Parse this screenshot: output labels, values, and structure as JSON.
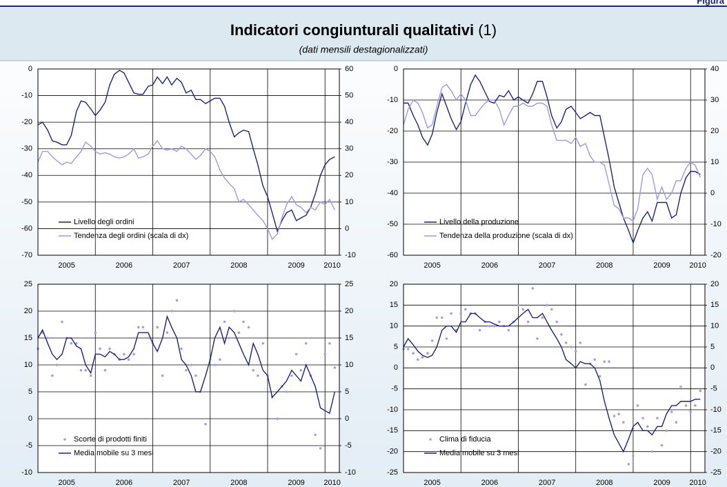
{
  "figure_label": "Figura",
  "title": "Indicatori congiunturali qualitativi",
  "title_note": "(1)",
  "subtitle": "(dati mensili destagionalizzati)",
  "chart_data": [
    {
      "type": "line",
      "x": [
        2005,
        2005.08,
        2005.17,
        2005.25,
        2005.33,
        2005.42,
        2005.5,
        2005.58,
        2005.67,
        2005.75,
        2005.83,
        2005.92,
        2006,
        2006.08,
        2006.17,
        2006.25,
        2006.33,
        2006.42,
        2006.5,
        2006.58,
        2006.67,
        2006.75,
        2006.83,
        2006.92,
        2007,
        2007.08,
        2007.17,
        2007.25,
        2007.33,
        2007.42,
        2007.5,
        2007.58,
        2007.67,
        2007.75,
        2007.83,
        2007.92,
        2008,
        2008.08,
        2008.17,
        2008.25,
        2008.33,
        2008.42,
        2008.5,
        2008.58,
        2008.67,
        2008.75,
        2008.83,
        2008.92,
        2009,
        2009.08,
        2009.17,
        2009.25,
        2009.33,
        2009.42,
        2009.5,
        2009.58,
        2009.67,
        2009.75,
        2009.83,
        2009.92,
        2010,
        2010.08,
        2010.17
      ],
      "xlim": [
        2005,
        2010.25
      ],
      "xgrid": [
        2006,
        2007,
        2008,
        2009,
        2010
      ],
      "xticks": [
        {
          "value": 2005.5,
          "label": "2005"
        },
        {
          "value": 2006.5,
          "label": "2006"
        },
        {
          "value": 2007.5,
          "label": "2007"
        },
        {
          "value": 2008.5,
          "label": "2008"
        },
        {
          "value": 2009.5,
          "label": "2009"
        },
        {
          "value": 2010.125,
          "label": "2010"
        }
      ],
      "ylim": [
        -70,
        0
      ],
      "yticks": [
        -70,
        -60,
        -50,
        -40,
        -30,
        -20,
        -10,
        0
      ],
      "y2lim": [
        -10,
        60
      ],
      "y2ticks": [
        -10,
        0,
        10,
        20,
        30,
        40,
        50,
        60
      ],
      "grid": true,
      "legend": "lower left",
      "series": [
        {
          "name": "Livello degli ordini",
          "color": "#1a2470",
          "mark": "line",
          "axis": "y",
          "values": [
            -21,
            -20,
            -23,
            -27,
            -27.5,
            -28.5,
            -28.5,
            -25,
            -16,
            -12,
            -12.5,
            -15,
            -17.5,
            -15.5,
            -12.5,
            -6,
            -2,
            -0.5,
            -1.5,
            -5,
            -9,
            -9.5,
            -9.5,
            -6.5,
            -6,
            -3,
            -5.5,
            -3,
            -6,
            -3.5,
            -5,
            -9,
            -8,
            -11.5,
            -11.5,
            -13,
            -12,
            -11,
            -11,
            -14,
            -20,
            -25.5,
            -24,
            -23,
            -23.5,
            -30,
            -36,
            -44,
            -48,
            -54,
            -61,
            -57,
            -54,
            -53,
            -57,
            -56,
            -55,
            -52,
            -47,
            -40,
            -36,
            -34,
            -33
          ]
        },
        {
          "name": "Tendenza degli ordini (scala di dx)",
          "color": "#9a9ae6",
          "mark": "line",
          "axis": "y2",
          "values": [
            25,
            29,
            29,
            27,
            25.5,
            24,
            25,
            24.5,
            27,
            29,
            32.5,
            31,
            29,
            28,
            28.5,
            28,
            27,
            26.5,
            27,
            28,
            30,
            26.5,
            27,
            28,
            31,
            33,
            30,
            29.5,
            30,
            29,
            31,
            30,
            28,
            26,
            27.5,
            30,
            29,
            27,
            22,
            19,
            17,
            15,
            10,
            11,
            9,
            7,
            5,
            3,
            0,
            -4,
            -2,
            4,
            9,
            12,
            9,
            8,
            6,
            8,
            7,
            10,
            9,
            11,
            7
          ]
        }
      ]
    },
    {
      "type": "line",
      "x": [
        2005,
        2005.08,
        2005.17,
        2005.25,
        2005.33,
        2005.42,
        2005.5,
        2005.58,
        2005.67,
        2005.75,
        2005.83,
        2005.92,
        2006,
        2006.08,
        2006.17,
        2006.25,
        2006.33,
        2006.42,
        2006.5,
        2006.58,
        2006.67,
        2006.75,
        2006.83,
        2006.92,
        2007,
        2007.08,
        2007.17,
        2007.25,
        2007.33,
        2007.42,
        2007.5,
        2007.58,
        2007.67,
        2007.75,
        2007.83,
        2007.92,
        2008,
        2008.08,
        2008.17,
        2008.25,
        2008.33,
        2008.42,
        2008.5,
        2008.58,
        2008.67,
        2008.75,
        2008.83,
        2008.92,
        2009,
        2009.08,
        2009.17,
        2009.25,
        2009.33,
        2009.42,
        2009.5,
        2009.58,
        2009.67,
        2009.75,
        2009.83,
        2009.92,
        2010,
        2010.08,
        2010.17
      ],
      "xlim": [
        2005,
        2010.25
      ],
      "xgrid": [
        2006,
        2007,
        2008,
        2009,
        2010
      ],
      "xticks": [
        {
          "value": 2005.5,
          "label": "2005"
        },
        {
          "value": 2006.5,
          "label": "2006"
        },
        {
          "value": 2007.5,
          "label": "2007"
        },
        {
          "value": 2008.5,
          "label": "2008"
        },
        {
          "value": 2009.5,
          "label": "2009"
        },
        {
          "value": 2010.125,
          "label": "2010"
        }
      ],
      "ylim": [
        -60,
        0
      ],
      "yticks": [
        -60,
        -50,
        -40,
        -30,
        -20,
        -10,
        0
      ],
      "y2lim": [
        -20,
        40
      ],
      "y2ticks": [
        -20,
        -10,
        0,
        10,
        20,
        30,
        40
      ],
      "grid": true,
      "legend": "lower left",
      "series": [
        {
          "name": "Livello della produzione",
          "color": "#1a2470",
          "mark": "line",
          "axis": "y",
          "values": [
            -11,
            -11,
            -15,
            -18,
            -22,
            -24.5,
            -21,
            -14,
            -8,
            -12,
            -16,
            -19.5,
            -17,
            -11,
            -5,
            -2,
            -4,
            -7.5,
            -10.5,
            -11,
            -8.5,
            -9,
            -7,
            -10,
            -9,
            -10,
            -11,
            -8,
            -4,
            -4,
            -9,
            -15,
            -19,
            -17,
            -13,
            -12,
            -14,
            -16,
            -15,
            -14,
            -15,
            -15,
            -22,
            -29,
            -38,
            -43,
            -48,
            -52,
            -56,
            -52,
            -48,
            -46,
            -49,
            -43,
            -43,
            -43,
            -48,
            -47,
            -40,
            -35,
            -33,
            -33,
            -34
          ]
        },
        {
          "name": "Tendenza della produzione (scala di dx)",
          "color": "#9a9ae6",
          "mark": "line",
          "axis": "y2",
          "values": [
            22,
            27,
            30,
            29,
            26,
            21,
            22,
            28,
            34,
            35,
            33,
            30,
            32,
            30,
            25,
            25,
            27,
            29,
            30,
            30,
            27,
            22,
            25,
            28,
            28,
            29,
            28,
            28,
            29,
            29,
            28,
            22,
            17,
            17,
            17,
            16,
            18,
            15,
            16,
            12,
            10,
            10,
            9,
            3,
            -4,
            -5,
            -8,
            -8,
            -9,
            -5,
            6,
            8,
            6,
            -2,
            2,
            -2,
            0,
            4,
            4,
            8,
            10,
            9,
            5
          ]
        }
      ]
    },
    {
      "type": "line",
      "x": [
        2005,
        2005.08,
        2005.17,
        2005.25,
        2005.33,
        2005.42,
        2005.5,
        2005.58,
        2005.67,
        2005.75,
        2005.83,
        2005.92,
        2006,
        2006.08,
        2006.17,
        2006.25,
        2006.33,
        2006.42,
        2006.5,
        2006.58,
        2006.67,
        2006.75,
        2006.83,
        2006.92,
        2007,
        2007.08,
        2007.17,
        2007.25,
        2007.33,
        2007.42,
        2007.5,
        2007.58,
        2007.67,
        2007.75,
        2007.83,
        2007.92,
        2008,
        2008.08,
        2008.17,
        2008.25,
        2008.33,
        2008.42,
        2008.5,
        2008.58,
        2008.67,
        2008.75,
        2008.83,
        2008.92,
        2009,
        2009.08,
        2009.17,
        2009.25,
        2009.33,
        2009.42,
        2009.5,
        2009.58,
        2009.67,
        2009.75,
        2009.83,
        2009.92,
        2010,
        2010.08,
        2010.17
      ],
      "xlim": [
        2005,
        2010.25
      ],
      "xgrid": [
        2006,
        2007,
        2008,
        2009,
        2010
      ],
      "xticks": [
        {
          "value": 2005.5,
          "label": "2005"
        },
        {
          "value": 2006.5,
          "label": "2006"
        },
        {
          "value": 2007.5,
          "label": "2007"
        },
        {
          "value": 2008.5,
          "label": "2008"
        },
        {
          "value": 2009.5,
          "label": "2009"
        },
        {
          "value": 2010.125,
          "label": "2010"
        }
      ],
      "ylim": [
        -10,
        25
      ],
      "yticks": [
        -10,
        -5,
        0,
        5,
        10,
        15,
        20,
        25
      ],
      "y2lim": [
        -10,
        25
      ],
      "y2ticks": [
        -10,
        -5,
        0,
        5,
        10,
        15,
        20,
        25
      ],
      "grid": true,
      "legend": "lower left",
      "series": [
        {
          "name": "Scorte di prodotti finiti",
          "color": "#a0a0e8",
          "mark": "dot",
          "axis": "y",
          "values": [
            13,
            16,
            15,
            8,
            10,
            18,
            15,
            14,
            14,
            9,
            9,
            8,
            16,
            13,
            9,
            13,
            12,
            11,
            12,
            11,
            12,
            17,
            17,
            15,
            14,
            17,
            8,
            16,
            20,
            22,
            13,
            9,
            10,
            8,
            5,
            -1,
            11,
            10,
            11,
            18,
            15,
            20,
            16,
            18,
            17,
            9,
            8,
            14,
            8,
            4,
            0,
            6,
            5,
            8,
            12,
            9,
            14,
            8,
            -3,
            -5.5,
            12,
            14,
            9.5
          ]
        },
        {
          "name": "Media mobile su 3 mesi",
          "color": "#1a2470",
          "mark": "line",
          "axis": "y",
          "values": [
            15,
            16.5,
            14,
            12,
            11,
            12,
            15,
            15,
            13.5,
            13,
            10,
            8.5,
            12,
            12,
            11.5,
            12.5,
            12,
            11,
            11,
            11.5,
            13,
            16,
            16,
            16,
            14,
            12.5,
            15,
            19,
            17,
            15,
            11,
            10,
            8,
            5,
            5,
            8,
            11,
            15,
            17,
            14,
            17,
            16,
            14,
            12,
            10,
            14,
            12,
            9,
            8,
            4,
            5,
            6,
            7,
            9,
            8,
            7,
            10,
            8,
            6,
            2,
            1.5,
            1,
            5
          ]
        }
      ]
    },
    {
      "type": "line",
      "x": [
        2005,
        2005.08,
        2005.17,
        2005.25,
        2005.33,
        2005.42,
        2005.5,
        2005.58,
        2005.67,
        2005.75,
        2005.83,
        2005.92,
        2006,
        2006.08,
        2006.17,
        2006.25,
        2006.33,
        2006.42,
        2006.5,
        2006.58,
        2006.67,
        2006.75,
        2006.83,
        2006.92,
        2007,
        2007.08,
        2007.17,
        2007.25,
        2007.33,
        2007.42,
        2007.5,
        2007.58,
        2007.67,
        2007.75,
        2007.83,
        2007.92,
        2008,
        2008.08,
        2008.17,
        2008.25,
        2008.33,
        2008.42,
        2008.5,
        2008.58,
        2008.67,
        2008.75,
        2008.83,
        2008.92,
        2009,
        2009.08,
        2009.17,
        2009.25,
        2009.33,
        2009.42,
        2009.5,
        2009.58,
        2009.67,
        2009.75,
        2009.83,
        2009.92,
        2010,
        2010.08,
        2010.17
      ],
      "xlim": [
        2005,
        2010.25
      ],
      "xgrid": [
        2006,
        2007,
        2008,
        2009,
        2010
      ],
      "xticks": [
        {
          "value": 2005.5,
          "label": "2005"
        },
        {
          "value": 2006.5,
          "label": "2006"
        },
        {
          "value": 2007.5,
          "label": "2007"
        },
        {
          "value": 2008.5,
          "label": "2008"
        },
        {
          "value": 2009.5,
          "label": "2009"
        },
        {
          "value": 2010.125,
          "label": "2010"
        }
      ],
      "ylim": [
        -25,
        20
      ],
      "yticks": [
        -25,
        -20,
        -15,
        -10,
        -5,
        0,
        5,
        10,
        15,
        20
      ],
      "y2lim": [
        -25,
        20
      ],
      "y2ticks": [
        -25,
        -20,
        -15,
        -10,
        -5,
        0,
        5,
        10,
        15,
        20
      ],
      "grid": true,
      "legend": "lower left",
      "series": [
        {
          "name": "Clima di fiducia",
          "color": "#a0a0e8",
          "mark": "dot",
          "axis": "y",
          "values": [
            4.5,
            4.5,
            3.5,
            2,
            2.5,
            3.5,
            6.5,
            12,
            12,
            7,
            13,
            9,
            13,
            14,
            13,
            13,
            9,
            11,
            10,
            10,
            11,
            10,
            9,
            11,
            15,
            14,
            11,
            19,
            7,
            12,
            15,
            14,
            11,
            8,
            6,
            5,
            4,
            6,
            -4,
            1,
            2,
            -2,
            1.5,
            1.5,
            -11.5,
            -11,
            -13,
            -23,
            -21,
            -9,
            -12,
            -14,
            -20,
            -12,
            -18.5,
            -15,
            -10.5,
            -13,
            -4.5,
            -9,
            -10.5,
            -9,
            -5.5
          ]
        },
        {
          "name": "Media mobile su 3 mesi",
          "color": "#1a2470",
          "mark": "line",
          "axis": "y",
          "values": [
            5,
            7,
            5.5,
            4,
            3,
            2.5,
            3,
            5,
            9,
            10,
            10,
            8.5,
            11,
            11,
            13,
            13,
            12,
            11,
            11,
            10.5,
            10,
            10,
            10,
            11,
            12,
            13,
            14,
            12,
            12,
            13,
            11,
            9,
            7,
            5,
            2,
            1,
            0,
            1.5,
            1,
            1,
            0,
            -3,
            -8,
            -12,
            -16,
            -18,
            -20,
            -17,
            -14,
            -13,
            -15,
            -15,
            -16,
            -14,
            -14,
            -11,
            -9,
            -9,
            -8,
            -8,
            -8,
            -7.5,
            -7.5
          ]
        }
      ]
    }
  ]
}
